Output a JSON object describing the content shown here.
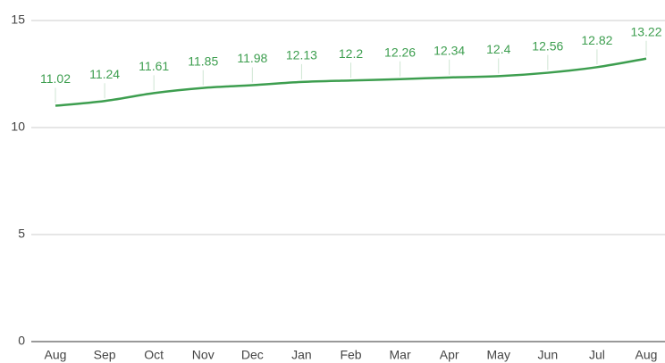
{
  "chart_data": {
    "type": "line",
    "categories": [
      "Aug",
      "Sep",
      "Oct",
      "Nov",
      "Dec",
      "Jan",
      "Feb",
      "Mar",
      "Apr",
      "May",
      "Jun",
      "Jul",
      "Aug"
    ],
    "values": [
      11.02,
      11.24,
      11.61,
      11.85,
      11.98,
      12.13,
      12.2,
      12.26,
      12.34,
      12.4,
      12.56,
      12.82,
      13.22
    ],
    "color": "#3d9e4f",
    "ylim": [
      0,
      15
    ],
    "yticks": [
      0,
      5,
      10,
      15
    ],
    "grid": true
  }
}
